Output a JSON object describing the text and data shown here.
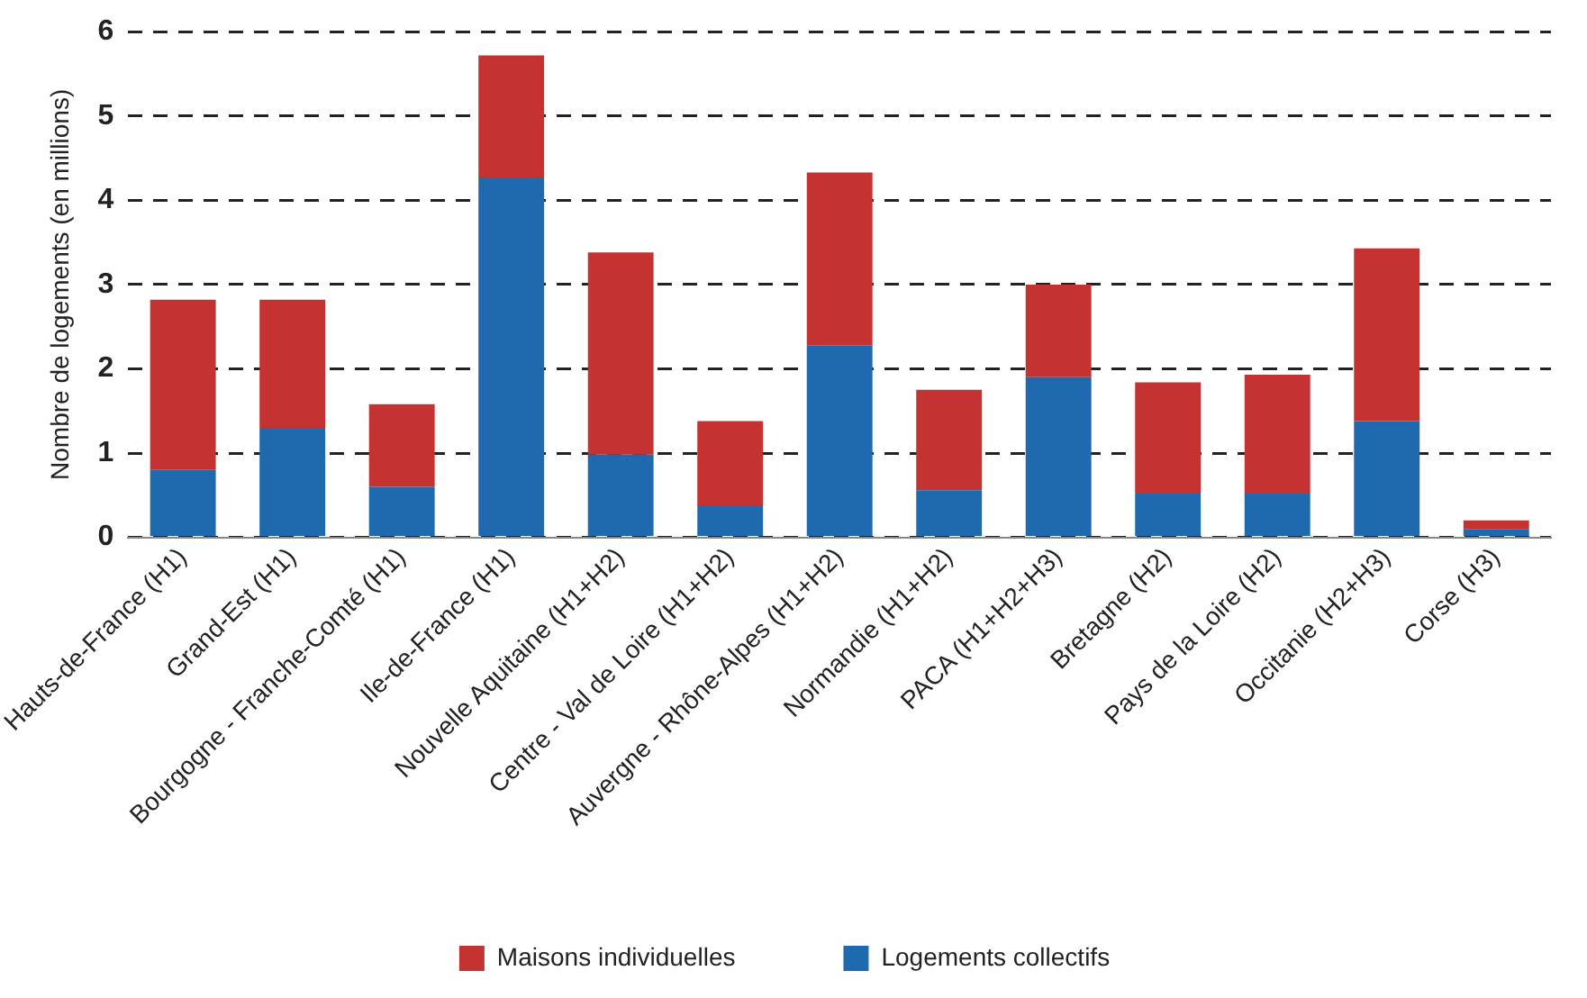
{
  "chart_data": {
    "type": "bar",
    "stacked": true,
    "ylabel": "Nombre de logements (en millions)",
    "categories": [
      "Hauts-de-France (H1)",
      "Grand-Est (H1)",
      "Bourgogne - Franche-Comté (H1)",
      "Ile-de-France (H1)",
      "Nouvelle Aquitaine (H1+H2)",
      "Centre - Val de Loire (H1+H2)",
      "Auvergne - Rhône-Alpes (H1+H2)",
      "Normandie (H1+H2)",
      "PACA (H1+H2+H3)",
      "Bretagne (H2)",
      "Pays de la Loire (H2)",
      "Occitanie (H2+H3)",
      "Corse (H3)"
    ],
    "series": [
      {
        "name": "Logements collectifs",
        "color": "#1f6aae",
        "values": [
          0.8,
          1.3,
          0.6,
          4.27,
          0.98,
          0.38,
          2.28,
          0.56,
          1.9,
          0.52,
          0.52,
          1.38,
          0.1
        ]
      },
      {
        "name": "Maisons individuelles",
        "color": "#c43331",
        "values": [
          2.02,
          1.52,
          0.98,
          1.45,
          2.4,
          1.0,
          2.05,
          1.19,
          1.1,
          1.32,
          1.41,
          2.05,
          0.1
        ]
      }
    ],
    "ylim": [
      0,
      6
    ],
    "yticks": [
      0,
      1,
      2,
      3,
      4,
      5,
      6
    ],
    "grid": "y",
    "legend": "bottom"
  }
}
